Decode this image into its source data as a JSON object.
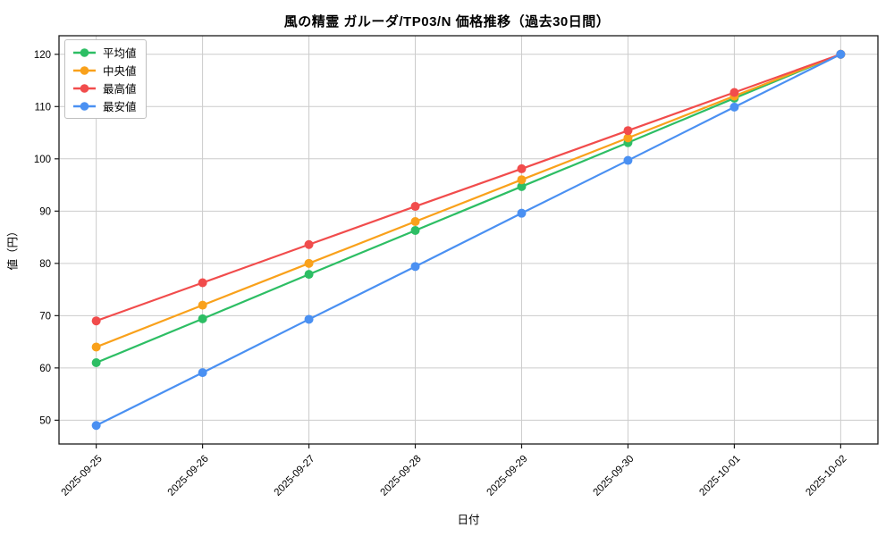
{
  "chart_data": {
    "type": "line",
    "title": "風の精霊 ガルーダ/TP03/N 価格推移（過去30日間）",
    "xlabel": "日付",
    "ylabel": "値（円）",
    "categories": [
      "2025-09-25",
      "2025-09-26",
      "2025-09-27",
      "2025-09-28",
      "2025-09-29",
      "2025-09-30",
      "2025-10-01",
      "2025-10-02"
    ],
    "series": [
      {
        "key": "average",
        "name": "平均値",
        "color": "#2dbe64",
        "values": [
          61,
          69.4,
          77.9,
          86.3,
          94.7,
          103.1,
          111.6,
          120
        ]
      },
      {
        "key": "median",
        "name": "中央値",
        "color": "#f9a11b",
        "values": [
          64,
          72,
          80,
          88,
          96,
          104,
          112,
          120
        ]
      },
      {
        "key": "max",
        "name": "最高値",
        "color": "#f14c4c",
        "values": [
          69,
          76.3,
          83.6,
          90.9,
          98.1,
          105.4,
          112.7,
          120
        ]
      },
      {
        "key": "min",
        "name": "最安値",
        "color": "#4a90f2",
        "values": [
          49,
          59.1,
          69.3,
          79.4,
          89.6,
          99.7,
          109.9,
          120
        ]
      }
    ],
    "yticks": [
      50,
      60,
      70,
      80,
      90,
      100,
      110,
      120
    ],
    "ylim": [
      45.45,
      123.55
    ],
    "xlim": [
      -0.35,
      7.35
    ],
    "grid": true,
    "grid_color": "#cccccc",
    "spine_color": "#1a1a1a",
    "legend_position": "upper-left",
    "marker": "circle",
    "x_tick_rotation": 45
  }
}
